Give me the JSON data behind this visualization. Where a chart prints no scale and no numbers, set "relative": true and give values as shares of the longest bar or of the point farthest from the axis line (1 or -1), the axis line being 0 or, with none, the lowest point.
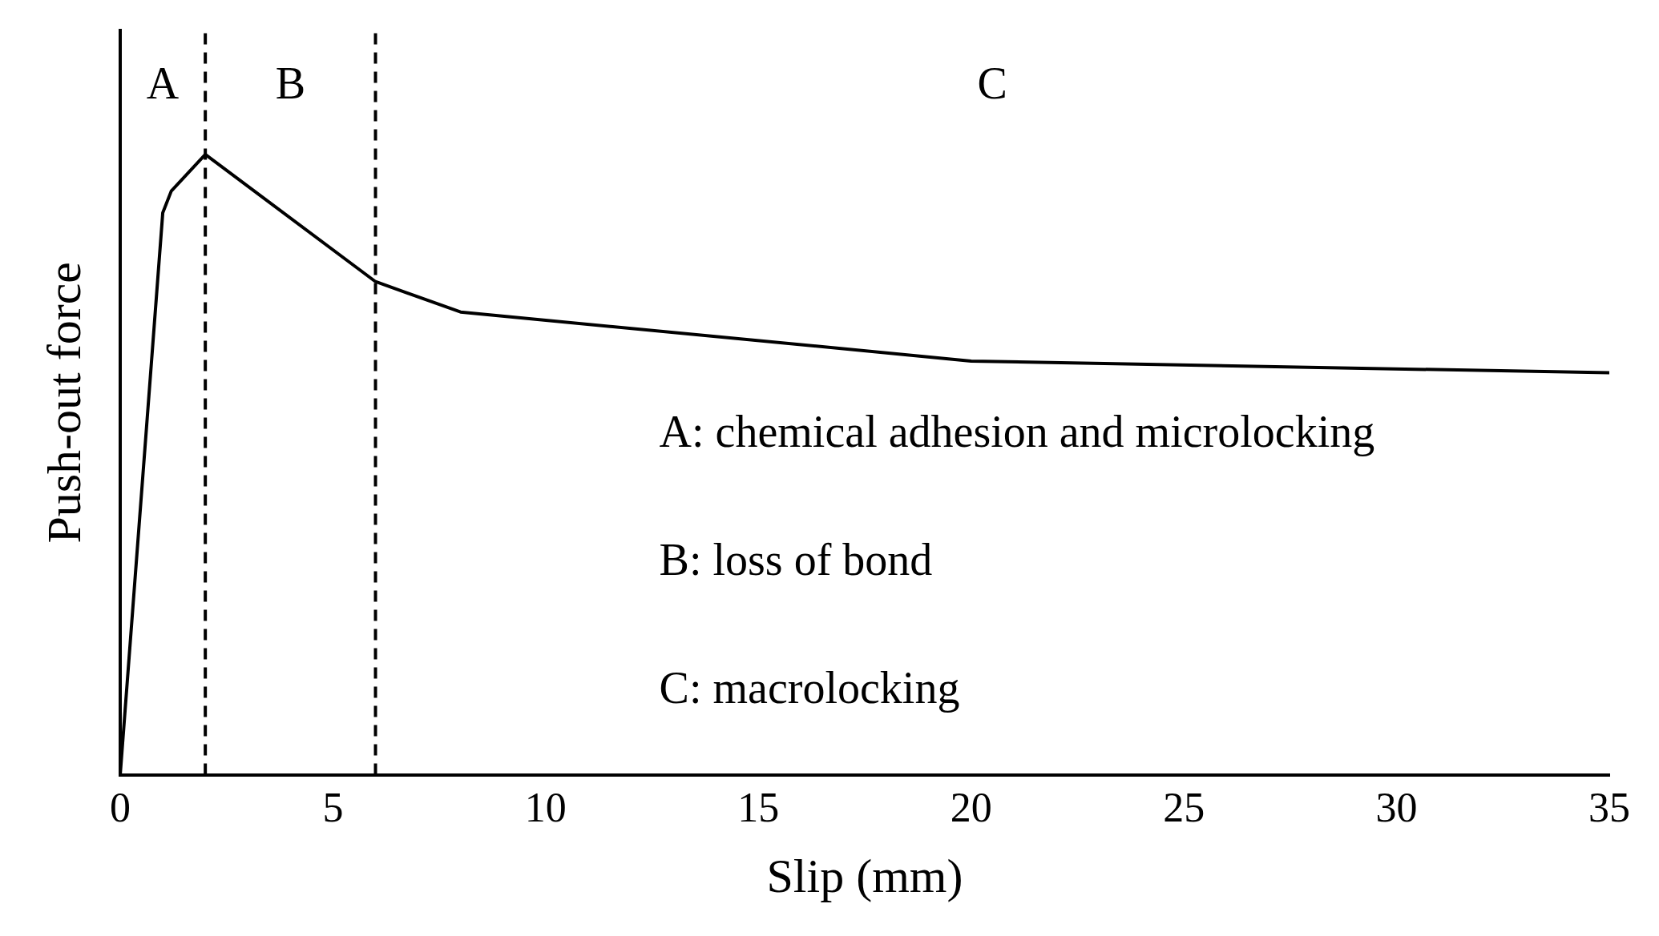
{
  "chart_data": {
    "type": "line",
    "relative": true,
    "xlabel": "Slip (mm)",
    "ylabel": "Push-out force",
    "xlim": [
      0,
      35
    ],
    "xticks": [
      0,
      5,
      10,
      15,
      20,
      25,
      30,
      35
    ],
    "grid": false,
    "legend": false,
    "marker": "none",
    "line_style": "solid",
    "series": [
      {
        "color": "#000000",
        "x": [
          0,
          1,
          1.2,
          2,
          6,
          8,
          20,
          35
        ],
        "values": [
          0,
          0.906,
          0.941,
          1,
          0.795,
          0.746,
          0.667,
          0.648
        ]
      }
    ],
    "ref_lines": [
      {
        "axis": "x",
        "value": 2,
        "color": "#000000",
        "line_style": "dashed"
      },
      {
        "axis": "x",
        "value": 6,
        "color": "#000000",
        "line_style": "dashed"
      }
    ],
    "annotations": [
      "A",
      "B",
      "C",
      "A: chemical adhesion and microlocking",
      "B: loss of bond",
      "C: macrolocking"
    ]
  }
}
